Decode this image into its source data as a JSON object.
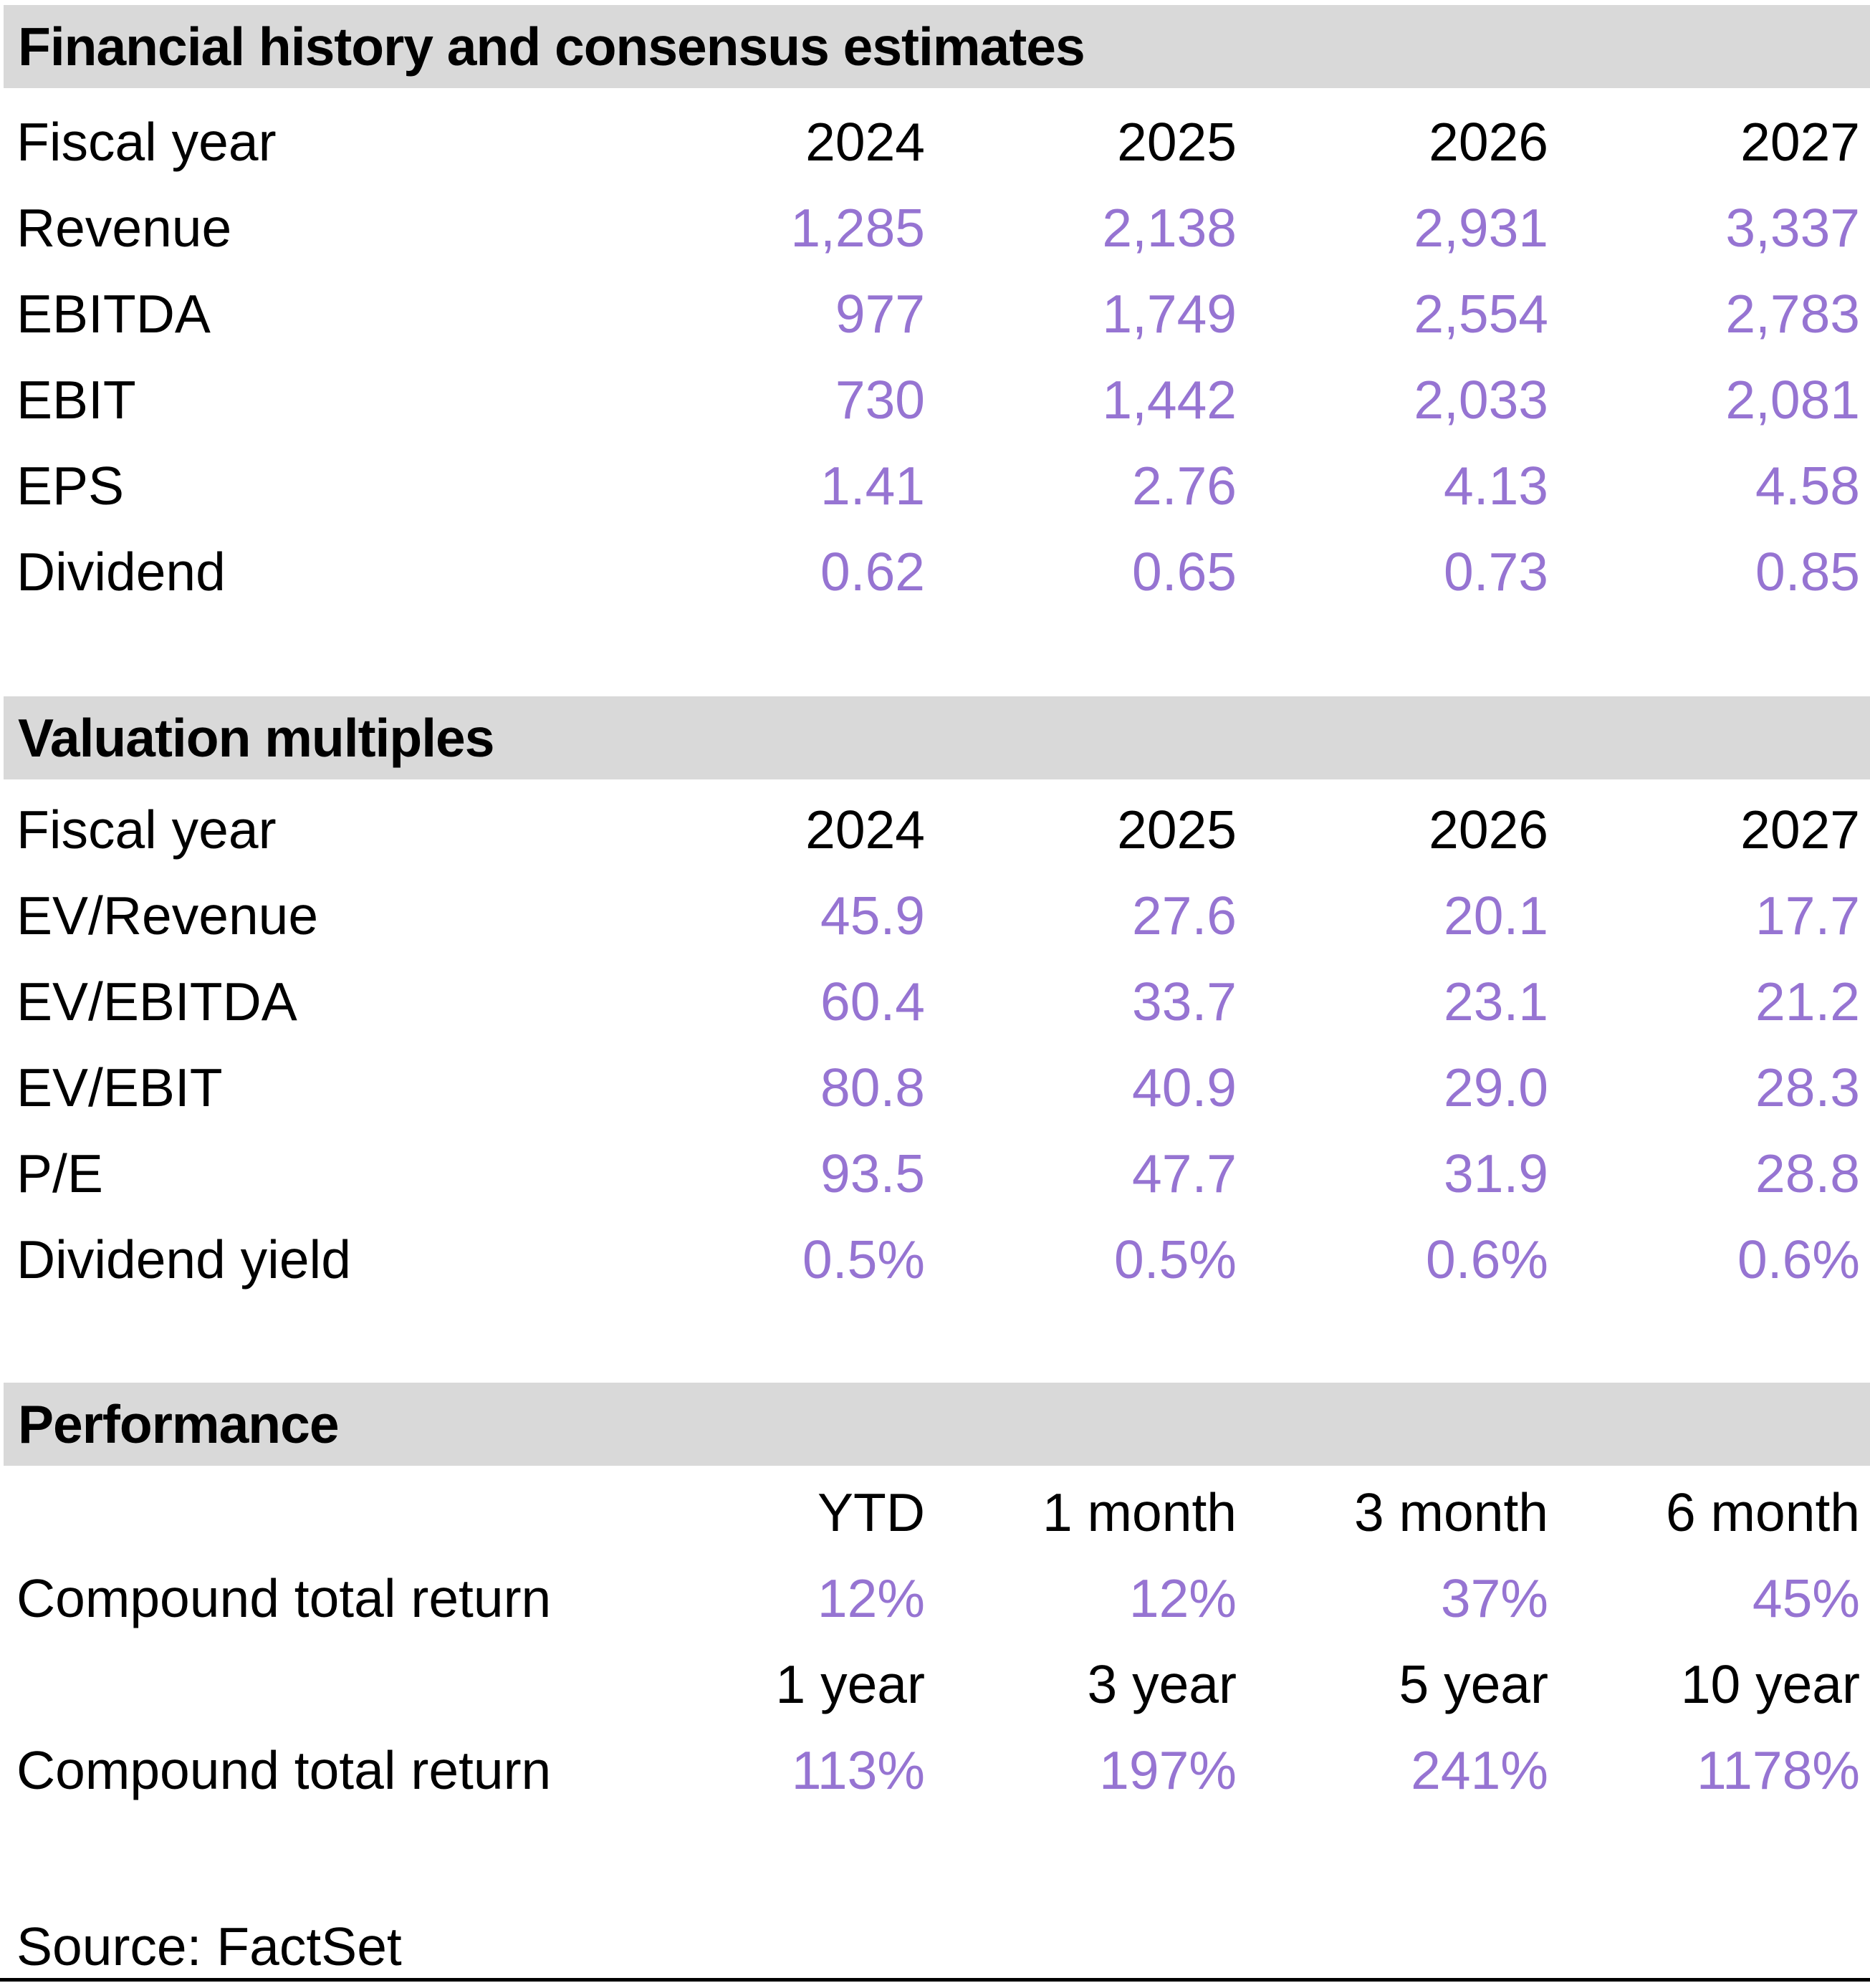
{
  "colors": {
    "accent": "#9674D2",
    "band": "#D9D9D9",
    "text": "#000000",
    "rule": "#000000"
  },
  "sections": [
    {
      "title": "Financial history and consensus estimates",
      "header": {
        "label": "Fiscal year",
        "cols": [
          "2024",
          "2025",
          "2026",
          "2027"
        ]
      },
      "rows": [
        {
          "label": "Revenue",
          "values": [
            "1,285",
            "2,138",
            "2,931",
            "3,337"
          ]
        },
        {
          "label": "EBITDA",
          "values": [
            "977",
            "1,749",
            "2,554",
            "2,783"
          ]
        },
        {
          "label": "EBIT",
          "values": [
            "730",
            "1,442",
            "2,033",
            "2,081"
          ]
        },
        {
          "label": "EPS",
          "values": [
            "1.41",
            "2.76",
            "4.13",
            "4.58"
          ]
        },
        {
          "label": "Dividend",
          "values": [
            "0.62",
            "0.65",
            "0.73",
            "0.85"
          ]
        }
      ]
    },
    {
      "title": "Valuation multiples",
      "header": {
        "label": "Fiscal year",
        "cols": [
          "2024",
          "2025",
          "2026",
          "2027"
        ]
      },
      "rows": [
        {
          "label": "EV/Revenue",
          "values": [
            "45.9",
            "27.6",
            "20.1",
            "17.7"
          ]
        },
        {
          "label": "EV/EBITDA",
          "values": [
            "60.4",
            "33.7",
            "23.1",
            "21.2"
          ]
        },
        {
          "label": "EV/EBIT",
          "values": [
            "80.8",
            "40.9",
            "29.0",
            "28.3"
          ]
        },
        {
          "label": "P/E",
          "values": [
            "93.5",
            "47.7",
            "31.9",
            "28.8"
          ]
        },
        {
          "label": "Dividend yield",
          "values": [
            "0.5%",
            "0.5%",
            "0.6%",
            "0.6%"
          ]
        }
      ]
    },
    {
      "title": "Performance",
      "blocks": [
        {
          "cols": [
            "YTD",
            "1 month",
            "3 month",
            "6 month"
          ],
          "row": {
            "label": "Compound total return",
            "values": [
              "12%",
              "12%",
              "37%",
              "45%"
            ]
          }
        },
        {
          "cols": [
            "1 year",
            "3 year",
            "5 year",
            "10 year"
          ],
          "row": {
            "label": "Compound total return",
            "values": [
              "113%",
              "197%",
              "241%",
              "1178%"
            ]
          }
        }
      ]
    }
  ],
  "source": "Source: FactSet"
}
